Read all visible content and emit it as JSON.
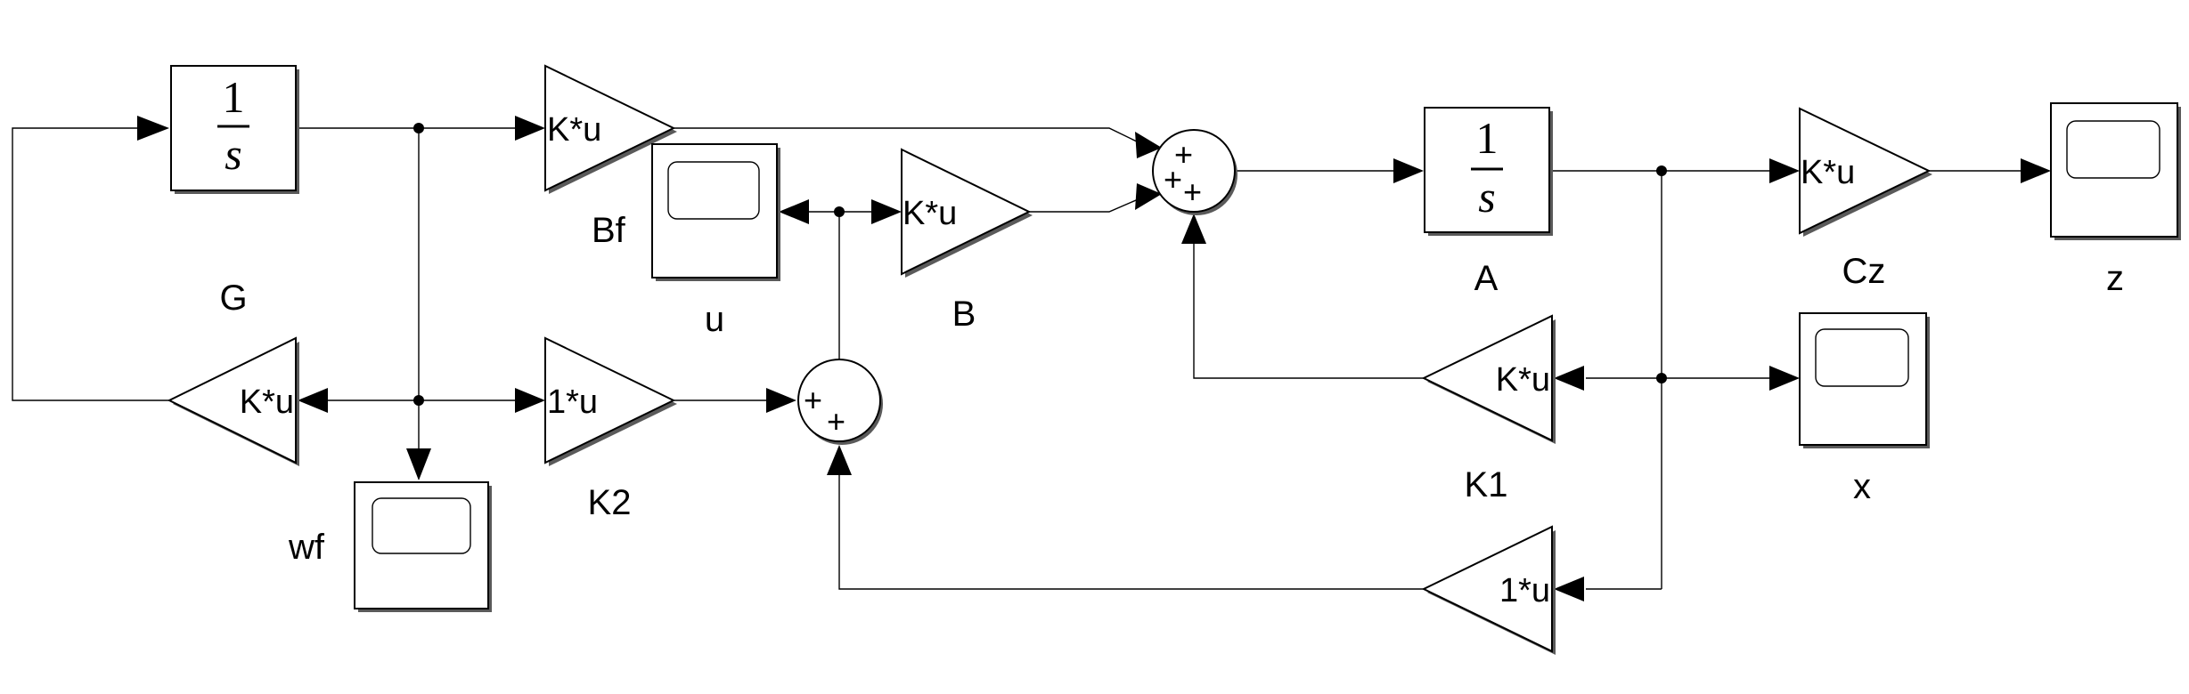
{
  "blocks": {
    "integrator_w": {
      "numerator": "1",
      "denominator": "s"
    },
    "integrator_x": {
      "numerator": "1",
      "denominator": "s",
      "label": "A"
    },
    "gain_G": {
      "text": "K*u",
      "label": "G"
    },
    "gain_Bf": {
      "text": "K*u",
      "label": "Bf"
    },
    "gain_B": {
      "text": "K*u",
      "label": "B"
    },
    "gain_K2": {
      "text": "1*u",
      "label": "K2"
    },
    "gain_Cz": {
      "text": "K*u",
      "label": "Cz"
    },
    "gain_K1": {
      "text": "K*u",
      "label": "K1"
    },
    "gain_unity": {
      "text": "1*u"
    },
    "scope_u": {
      "label": "u"
    },
    "scope_wf": {
      "label": "wf"
    },
    "scope_z": {
      "label": "z"
    },
    "scope_x": {
      "label": "x"
    },
    "sum_main": {
      "signs": [
        "+",
        "+",
        "+"
      ]
    },
    "sum_u": {
      "signs": [
        "+",
        "+"
      ]
    }
  }
}
